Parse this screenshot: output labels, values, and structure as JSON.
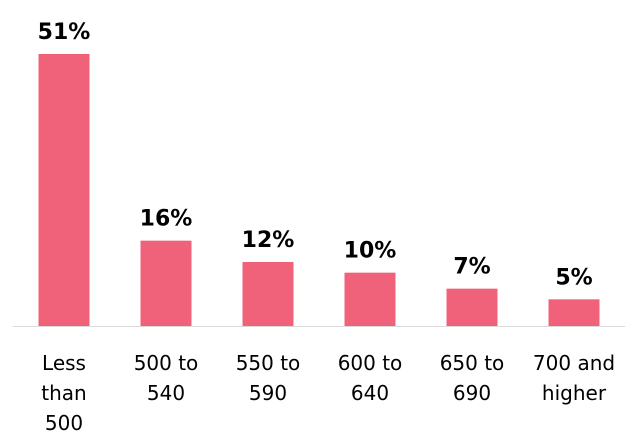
{
  "chart_data": {
    "type": "bar",
    "categories": [
      [
        "Less",
        "than",
        "500"
      ],
      [
        "500 to",
        "540"
      ],
      [
        "550 to",
        "590"
      ],
      [
        "600 to",
        "640"
      ],
      [
        "650 to",
        "690"
      ],
      [
        "700 and",
        "higher"
      ]
    ],
    "values": [
      51,
      16,
      12,
      10,
      7,
      5
    ],
    "value_labels": [
      "51%",
      "16%",
      "12%",
      "10%",
      "7%",
      "5%"
    ],
    "unit": "%",
    "ylim": [
      0,
      51
    ],
    "grid": false,
    "legend": "none",
    "colors": {
      "bar": "#f0627a",
      "axis": "#d9d9d9",
      "text": "#000000"
    }
  }
}
